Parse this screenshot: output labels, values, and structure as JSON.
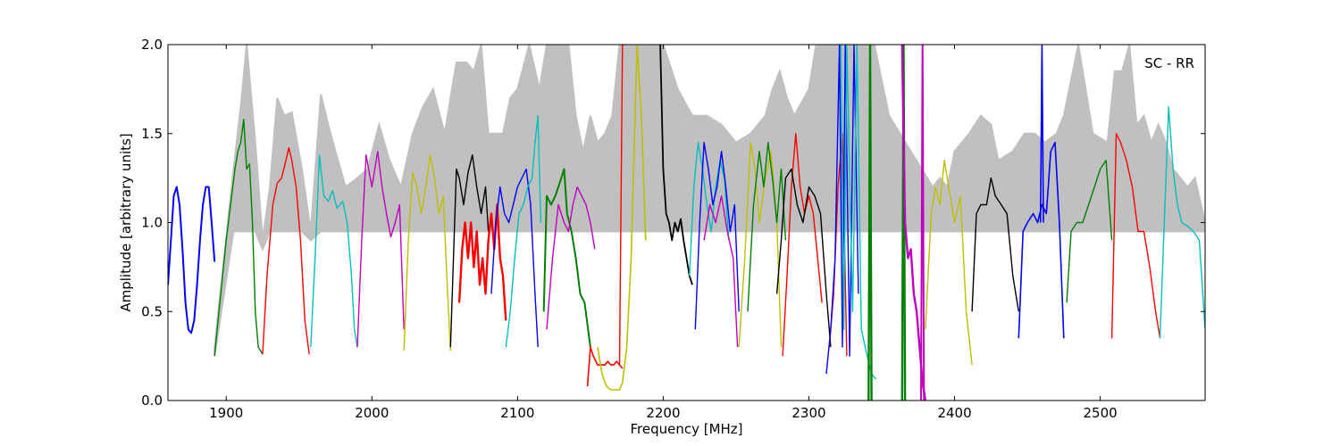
{
  "chart_data": {
    "type": "line",
    "title": "",
    "annotation": "SC - RR",
    "xlabel": "Frequency [MHz]",
    "ylabel": "Amplitude [arbitrary units]",
    "xlim": [
      1860,
      2572
    ],
    "ylim": [
      0.0,
      2.0
    ],
    "xticks": [
      1900,
      2000,
      2100,
      2200,
      2300,
      2400,
      2500
    ],
    "xtick_labels": [
      "1900",
      "2000",
      "2100",
      "2200",
      "2300",
      "2400",
      "2500"
    ],
    "yticks": [
      0.0,
      0.5,
      1.0,
      1.5,
      2.0
    ],
    "ytick_labels": [
      "0.0",
      "0.5",
      "1.0",
      "1.5",
      "2.0"
    ],
    "grid": false,
    "envelope": {
      "color": "#c0c0c0",
      "x": [
        1892,
        1905,
        1910,
        1914,
        1920,
        1925,
        1930,
        1935,
        1940,
        1945,
        1952,
        1958,
        1965,
        1970,
        1975,
        1982,
        1990,
        1997,
        2005,
        2012,
        2020,
        2028,
        2035,
        2042,
        2050,
        2058,
        2065,
        2070,
        2075,
        2080,
        2090,
        2095,
        2100,
        2108,
        2115,
        2120,
        2128,
        2135,
        2140,
        2145,
        2150,
        2155,
        2160,
        2165,
        2170,
        2175,
        2190,
        2200,
        2210,
        2220,
        2230,
        2240,
        2250,
        2260,
        2270,
        2275,
        2280,
        2285,
        2290,
        2300,
        2305,
        2310,
        2318,
        2325,
        2330,
        2335,
        2345,
        2355,
        2370,
        2385,
        2390,
        2395,
        2400,
        2410,
        2418,
        2425,
        2430,
        2440,
        2448,
        2455,
        2462,
        2470,
        2475,
        2485,
        2495,
        2505,
        2510,
        2515,
        2520,
        2525,
        2530,
        2535,
        2540,
        2545,
        2550,
        2555,
        2560,
        2565,
        2572
      ],
      "upper": [
        0.3,
        1.3,
        1.65,
        2.0,
        1.45,
        0.9,
        1.2,
        1.7,
        1.6,
        1.62,
        1.3,
        0.95,
        1.72,
        1.55,
        1.4,
        1.2,
        1.25,
        1.3,
        1.55,
        1.35,
        1.2,
        1.5,
        1.65,
        1.75,
        1.5,
        1.9,
        1.9,
        1.85,
        2.0,
        1.5,
        1.5,
        1.7,
        1.75,
        2.0,
        1.75,
        2.0,
        2.0,
        2.0,
        1.6,
        1.4,
        1.6,
        1.45,
        1.5,
        1.6,
        2.0,
        2.0,
        2.0,
        2.0,
        1.75,
        1.6,
        1.6,
        1.55,
        1.45,
        1.5,
        1.6,
        1.75,
        1.85,
        1.7,
        1.6,
        1.75,
        2.0,
        2.0,
        2.0,
        2.0,
        2.0,
        2.0,
        2.0,
        1.6,
        1.4,
        1.2,
        1.25,
        1.2,
        1.4,
        1.5,
        1.6,
        1.55,
        1.35,
        1.4,
        1.5,
        1.5,
        1.45,
        1.5,
        1.6,
        2.0,
        1.5,
        1.45,
        1.85,
        1.85,
        2.0,
        1.55,
        1.6,
        1.45,
        1.55,
        1.45,
        1.3,
        1.25,
        1.2,
        1.25,
        1.0
      ]
    },
    "series": [
      {
        "color": "#0000ff",
        "lw": 2.0,
        "x": [
          1860,
          1862,
          1864,
          1866,
          1868,
          1870,
          1872,
          1874,
          1876,
          1878,
          1880,
          1882,
          1884,
          1886,
          1888,
          1890,
          1892
        ],
        "y": [
          0.65,
          0.9,
          1.15,
          1.2,
          1.1,
          0.85,
          0.55,
          0.4,
          0.38,
          0.45,
          0.65,
          0.9,
          1.1,
          1.2,
          1.2,
          1.0,
          0.78
        ]
      },
      {
        "color": "#008000",
        "lw": 1.4,
        "x": [
          1892,
          1895,
          1900,
          1903,
          1906,
          1908,
          1910,
          1912,
          1914,
          1916,
          1918,
          1920,
          1922,
          1925
        ],
        "y": [
          0.25,
          0.5,
          0.9,
          1.1,
          1.3,
          1.4,
          1.45,
          1.58,
          1.3,
          1.33,
          1.0,
          0.5,
          0.3,
          0.26
        ]
      },
      {
        "color": "#ff0000",
        "lw": 1.4,
        "x": [
          1925,
          1928,
          1932,
          1935,
          1938,
          1941,
          1943,
          1945,
          1948,
          1951,
          1954,
          1957
        ],
        "y": [
          0.26,
          0.7,
          1.1,
          1.22,
          1.25,
          1.35,
          1.42,
          1.35,
          1.2,
          0.9,
          0.45,
          0.26
        ]
      },
      {
        "color": "#00bfbf",
        "lw": 1.4,
        "x": [
          1958,
          1961,
          1964,
          1967,
          1970,
          1973,
          1976,
          1980,
          1983,
          1986,
          1988,
          1990
        ],
        "y": [
          0.3,
          0.8,
          1.38,
          1.15,
          1.12,
          1.18,
          1.08,
          1.12,
          1.0,
          0.7,
          0.4,
          0.3
        ]
      },
      {
        "color": "#bf00bf",
        "lw": 1.4,
        "x": [
          1990,
          1993,
          1996,
          2000,
          2004,
          2007,
          2010,
          2013,
          2016,
          2019,
          2022
        ],
        "y": [
          0.3,
          0.9,
          1.38,
          1.2,
          1.4,
          1.2,
          1.05,
          0.92,
          1.0,
          1.1,
          0.4
        ]
      },
      {
        "color": "#bfbf00",
        "lw": 1.4,
        "x": [
          2022,
          2025,
          2028,
          2031,
          2034,
          2037,
          2040,
          2043,
          2046,
          2049,
          2052,
          2054
        ],
        "y": [
          0.28,
          0.9,
          1.28,
          1.2,
          1.05,
          1.2,
          1.38,
          1.25,
          1.05,
          1.15,
          0.6,
          0.28
        ]
      },
      {
        "color": "#000000",
        "lw": 1.4,
        "x": [
          2054,
          2056,
          2058,
          2060,
          2063,
          2066,
          2069,
          2072,
          2075,
          2078,
          2080
        ],
        "y": [
          0.3,
          0.8,
          1.3,
          1.25,
          1.1,
          1.28,
          1.38,
          1.2,
          1.05,
          1.2,
          0.95
        ]
      },
      {
        "color": "#ff0000",
        "lw": 2.4,
        "x": [
          2060,
          2062,
          2064,
          2066,
          2068,
          2070,
          2072,
          2074,
          2076,
          2078,
          2080,
          2082,
          2084,
          2086,
          2088,
          2090,
          2092
        ],
        "y": [
          0.55,
          0.85,
          1.0,
          0.8,
          1.0,
          0.75,
          0.95,
          0.65,
          0.8,
          0.6,
          0.9,
          1.05,
          0.85,
          1.1,
          0.8,
          0.7,
          0.45
        ]
      },
      {
        "color": "#0000ff",
        "lw": 1.4,
        "x": [
          2082,
          2085,
          2088,
          2091,
          2094,
          2097,
          2100,
          2103,
          2106,
          2109,
          2112,
          2114
        ],
        "y": [
          0.6,
          1.0,
          1.2,
          1.05,
          1.0,
          1.1,
          1.2,
          1.25,
          1.3,
          1.1,
          0.6,
          0.3
        ]
      },
      {
        "color": "#00bfbf",
        "lw": 1.4,
        "x": [
          2092,
          2095,
          2098,
          2101,
          2104,
          2107,
          2110,
          2112,
          2114,
          2116
        ],
        "y": [
          0.3,
          0.5,
          0.8,
          1.05,
          1.1,
          1.2,
          1.25,
          1.45,
          1.6,
          1.0
        ]
      },
      {
        "color": "#008000",
        "lw": 2.0,
        "x": [
          2118,
          2120,
          2123,
          2126,
          2128,
          2130,
          2132,
          2134,
          2137,
          2140,
          2143,
          2146,
          2150
        ],
        "y": [
          0.5,
          1.15,
          1.1,
          1.15,
          1.2,
          1.25,
          1.3,
          1.05,
          0.95,
          0.8,
          0.6,
          0.55,
          0.3
        ]
      },
      {
        "color": "#bf00bf",
        "lw": 1.4,
        "x": [
          2120,
          2124,
          2128,
          2132,
          2135,
          2138,
          2141,
          2144,
          2147,
          2150,
          2153
        ],
        "y": [
          0.4,
          0.8,
          1.1,
          1.0,
          0.95,
          1.1,
          1.2,
          1.15,
          1.1,
          1.0,
          0.85
        ]
      },
      {
        "color": "#ff0000",
        "lw": 1.6,
        "x": [
          2148,
          2150,
          2152,
          2155,
          2158,
          2160,
          2162,
          2164,
          2166,
          2168,
          2170,
          2172
        ],
        "y": [
          0.08,
          0.3,
          0.25,
          0.2,
          0.2,
          0.2,
          0.22,
          0.2,
          0.2,
          0.22,
          0.2,
          0.18
        ]
      },
      {
        "color": "#bfbf00",
        "lw": 1.6,
        "x": [
          2155,
          2158,
          2161,
          2164,
          2167,
          2170,
          2172,
          2175,
          2178,
          2182,
          2185,
          2188
        ],
        "y": [
          0.3,
          0.15,
          0.08,
          0.06,
          0.06,
          0.06,
          0.1,
          0.3,
          0.8,
          2.0,
          1.6,
          0.9
        ]
      },
      {
        "color": "#ff0000",
        "lw": 1.4,
        "x": [
          2170,
          2172,
          2174
        ],
        "y": [
          0.2,
          2.0,
          2.0
        ]
      },
      {
        "color": "#000000",
        "lw": 1.8,
        "x": [
          2198,
          2200,
          2202,
          2204,
          2206,
          2208,
          2210,
          2212,
          2214,
          2216,
          2218,
          2220
        ],
        "y": [
          2.0,
          1.3,
          1.05,
          1.0,
          0.9,
          1.0,
          0.95,
          1.02,
          0.9,
          0.8,
          0.7,
          0.65
        ]
      },
      {
        "color": "#00bfbf",
        "lw": 1.4,
        "x": [
          2218,
          2221,
          2224,
          2227,
          2230,
          2233,
          2236,
          2239,
          2242,
          2245
        ],
        "y": [
          0.7,
          1.2,
          1.45,
          1.3,
          1.1,
          0.95,
          1.2,
          1.35,
          1.25,
          0.9
        ]
      },
      {
        "color": "#0000ff",
        "lw": 1.4,
        "x": [
          2222,
          2225,
          2228,
          2231,
          2234,
          2237,
          2240,
          2243,
          2246,
          2249,
          2252
        ],
        "y": [
          0.4,
          1.0,
          1.45,
          1.3,
          1.1,
          1.2,
          1.4,
          1.2,
          0.95,
          1.1,
          0.5
        ]
      },
      {
        "color": "#bf00bf",
        "lw": 1.4,
        "x": [
          2228,
          2232,
          2236,
          2240,
          2244,
          2248,
          2251
        ],
        "y": [
          0.9,
          1.1,
          1.0,
          1.15,
          0.95,
          0.8,
          0.3
        ]
      },
      {
        "color": "#bfbf00",
        "lw": 1.4,
        "x": [
          2252,
          2256,
          2260,
          2263,
          2266,
          2270,
          2274,
          2278,
          2281
        ],
        "y": [
          0.3,
          0.8,
          1.45,
          1.3,
          1.0,
          1.25,
          1.4,
          1.0,
          0.3
        ]
      },
      {
        "color": "#008000",
        "lw": 1.4,
        "x": [
          2258,
          2262,
          2266,
          2269,
          2272,
          2275,
          2278,
          2281,
          2284
        ],
        "y": [
          0.5,
          1.1,
          1.4,
          1.2,
          1.45,
          1.25,
          1.0,
          1.3,
          0.9
        ]
      },
      {
        "color": "#ff0000",
        "lw": 1.4,
        "x": [
          2282,
          2285,
          2288,
          2291,
          2294,
          2297,
          2300,
          2303,
          2306,
          2309
        ],
        "y": [
          0.25,
          0.7,
          1.2,
          1.5,
          1.2,
          1.05,
          1.15,
          1.05,
          0.8,
          0.55
        ]
      },
      {
        "color": "#000000",
        "lw": 1.4,
        "x": [
          2278,
          2281,
          2284,
          2288,
          2292,
          2296,
          2300,
          2304,
          2308,
          2312,
          2315
        ],
        "y": [
          0.6,
          0.9,
          1.25,
          1.3,
          1.1,
          1.0,
          1.2,
          1.15,
          1.05,
          0.6,
          0.3
        ]
      },
      {
        "color": "#ff0000",
        "lw": 1.4,
        "x": [
          2314,
          2317,
          2320,
          2323,
          2326
        ],
        "y": [
          0.3,
          0.6,
          1.2,
          1.5,
          0.25
        ]
      },
      {
        "color": "#0000ff",
        "lw": 1.4,
        "x": [
          2312,
          2315,
          2318,
          2321,
          2323,
          2325,
          2328,
          2331,
          2334
        ],
        "y": [
          0.15,
          0.4,
          0.8,
          2.0,
          0.3,
          2.0,
          0.25,
          2.0,
          0.6
        ]
      },
      {
        "color": "#00bfbf",
        "lw": 1.4,
        "x": [
          2322,
          2324,
          2326,
          2330,
          2333,
          2336,
          2340,
          2343,
          2346
        ],
        "y": [
          2.0,
          0.4,
          2.0,
          0.5,
          2.0,
          0.4,
          0.25,
          0.15,
          0.12
        ]
      },
      {
        "color": "#008000",
        "lw": 2.4,
        "x": [
          2341,
          2342,
          2343
        ],
        "y": [
          0.0,
          2.0,
          0.0
        ]
      },
      {
        "color": "#008000",
        "lw": 2.4,
        "x": [
          2364,
          2365,
          2366
        ],
        "y": [
          0.0,
          2.0,
          0.0
        ]
      },
      {
        "color": "#bf00bf",
        "lw": 2.4,
        "x": [
          2364,
          2366,
          2368,
          2370,
          2372,
          2374,
          2376,
          2378,
          2380
        ],
        "y": [
          2.0,
          1.0,
          0.8,
          0.85,
          0.6,
          0.5,
          0.3,
          0.1,
          0.0
        ]
      },
      {
        "color": "#bf00bf",
        "lw": 2.0,
        "x": [
          2377,
          2378,
          2379
        ],
        "y": [
          0.0,
          2.0,
          0.0
        ]
      },
      {
        "color": "#bfbf00",
        "lw": 1.4,
        "x": [
          2380,
          2384,
          2387,
          2390,
          2393,
          2396,
          2400,
          2404,
          2408,
          2412
        ],
        "y": [
          0.4,
          1.05,
          1.2,
          1.1,
          1.35,
          1.2,
          1.0,
          1.15,
          0.5,
          0.2
        ]
      },
      {
        "color": "#000000",
        "lw": 1.4,
        "x": [
          2412,
          2415,
          2418,
          2422,
          2425,
          2428,
          2432,
          2436,
          2440,
          2444
        ],
        "y": [
          0.5,
          1.05,
          1.1,
          1.1,
          1.25,
          1.15,
          1.1,
          1.05,
          0.7,
          0.5
        ]
      },
      {
        "color": "#0000ff",
        "lw": 1.6,
        "x": [
          2444,
          2447,
          2450,
          2454,
          2457,
          2460,
          2463,
          2466,
          2469,
          2472,
          2475
        ],
        "y": [
          0.35,
          0.95,
          1.0,
          1.05,
          1.0,
          1.1,
          1.05,
          1.4,
          1.45,
          1.0,
          0.35
        ]
      },
      {
        "color": "#0000ff",
        "lw": 1.6,
        "x": [
          2459,
          2460,
          2461
        ],
        "y": [
          1.0,
          2.0,
          1.0
        ]
      },
      {
        "color": "#008000",
        "lw": 1.4,
        "x": [
          2477,
          2480,
          2484,
          2488,
          2492,
          2496,
          2500,
          2504,
          2508
        ],
        "y": [
          0.55,
          0.95,
          1.0,
          1.0,
          1.1,
          1.2,
          1.3,
          1.35,
          0.9
        ]
      },
      {
        "color": "#ff0000",
        "lw": 1.4,
        "x": [
          2508,
          2511,
          2514,
          2518,
          2522,
          2526,
          2530,
          2534,
          2538,
          2541
        ],
        "y": [
          0.35,
          1.5,
          1.45,
          1.35,
          1.2,
          0.95,
          0.95,
          0.75,
          0.5,
          0.35
        ]
      },
      {
        "color": "#00bfbf",
        "lw": 1.4,
        "x": [
          2541,
          2544,
          2547,
          2550,
          2553,
          2556,
          2560,
          2564,
          2568,
          2572
        ],
        "y": [
          0.35,
          1.0,
          1.65,
          1.3,
          1.1,
          1.0,
          0.98,
          0.95,
          0.9,
          0.4
        ]
      }
    ]
  }
}
